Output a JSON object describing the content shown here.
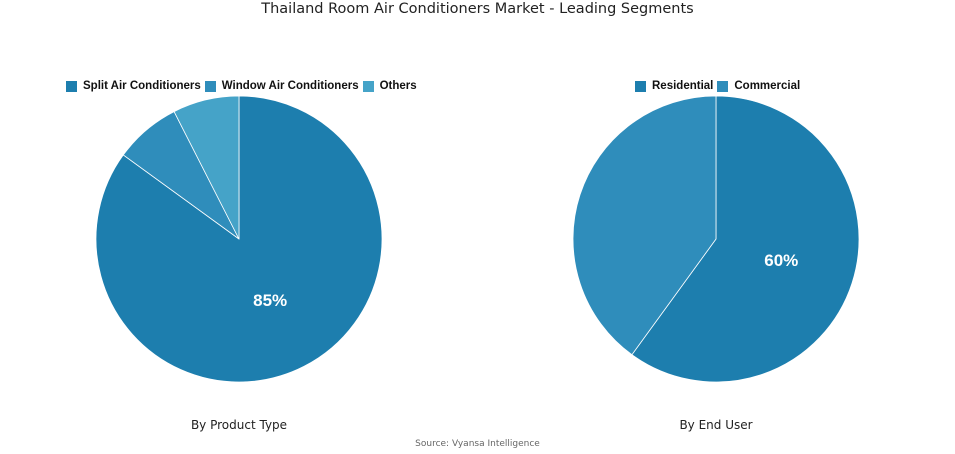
{
  "title": "Thailand Room Air Conditioners Market - Leading Segments",
  "source": "Source: Vyansa Intelligence",
  "chart_data": [
    {
      "type": "pie",
      "caption": "By Product Type",
      "legend_position": "top",
      "slices": [
        {
          "label": "Split Air Conditioners",
          "value": 85,
          "color": "#1d7eae",
          "shown_label": "85%"
        },
        {
          "label": "Window Air Conditioners",
          "value": 7.5,
          "color": "#2f8dbb",
          "shown_label": ""
        },
        {
          "label": "Others",
          "value": 7.5,
          "color": "#45a3c8",
          "shown_label": ""
        }
      ]
    },
    {
      "type": "pie",
      "caption": "By End User",
      "legend_position": "top",
      "slices": [
        {
          "label": "Residential",
          "value": 60,
          "color": "#1d7eae",
          "shown_label": "60%"
        },
        {
          "label": "Commercial",
          "value": 40,
          "color": "#2f8dbb",
          "shown_label": ""
        }
      ]
    }
  ]
}
